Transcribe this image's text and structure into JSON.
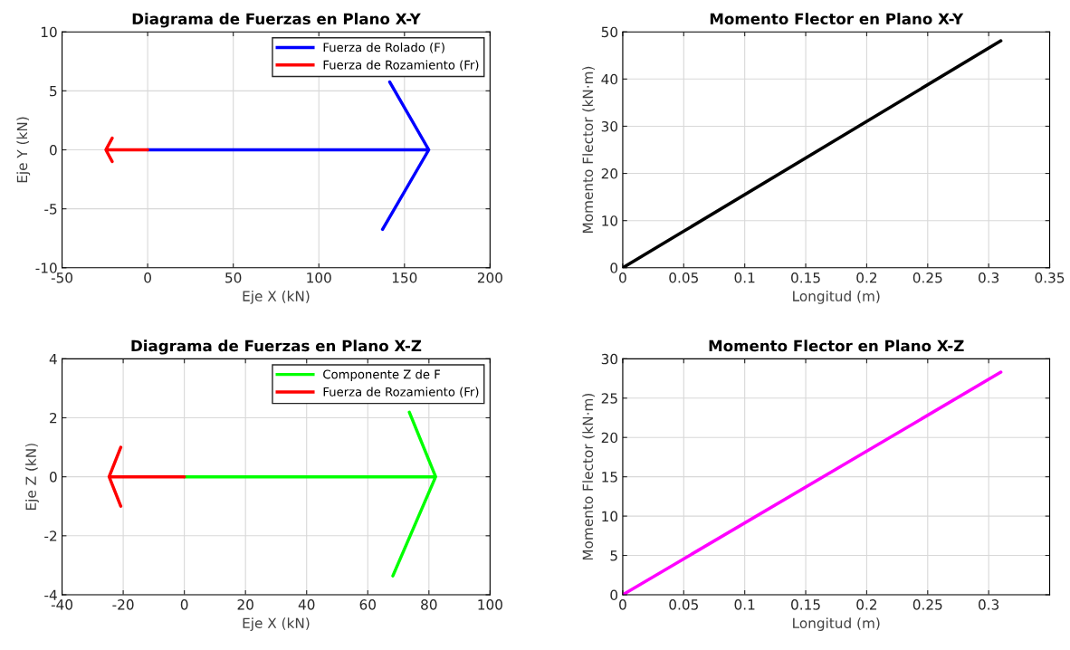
{
  "chart_data": [
    {
      "type": "line",
      "title": "Diagrama de Fuerzas en Plano X-Y",
      "xlabel": "Eje X (kN)",
      "ylabel": "Eje Y (kN)",
      "xlim": [
        -50,
        200
      ],
      "xticks": [
        -50,
        0,
        50,
        100,
        150,
        200
      ],
      "ylim": [
        -10,
        10
      ],
      "yticks": [
        -10,
        -5,
        0,
        5,
        10
      ],
      "grid": true,
      "legend": "top right",
      "marker": "none",
      "line_style": "solid",
      "series": [
        {
          "name": "Fuerza de Rolado (F)",
          "color": "#0000ff",
          "x": [
            0,
            164.2,
            141.4,
            164.2,
            137.2
          ],
          "values": [
            0,
            0,
            5.75,
            0,
            -6.74
          ]
        },
        {
          "name": "Fuerza de Rozamiento (Fr)",
          "color": "#ff0000",
          "x": [
            0,
            -24.4,
            -20.7,
            -24.4,
            -20.7
          ],
          "values": [
            0,
            0,
            1.0,
            0,
            -1.0
          ]
        }
      ]
    },
    {
      "type": "line",
      "title": "Momento Flector en Plano X-Y",
      "xlabel": "Longitud (m)",
      "ylabel": "Momento Flector (kN·m)",
      "xlim": [
        0,
        0.35
      ],
      "xticks": [
        0,
        0.05,
        0.1,
        0.15,
        0.2,
        0.25,
        0.3,
        0.35
      ],
      "ylim": [
        0,
        50
      ],
      "yticks": [
        0,
        10,
        20,
        30,
        40,
        50
      ],
      "grid": true,
      "marker": "none",
      "line_style": "solid",
      "series": [
        {
          "color": "#000000",
          "x": [
            0,
            0.31
          ],
          "values": [
            0,
            48.1
          ]
        }
      ]
    },
    {
      "type": "line",
      "title": "Diagrama de Fuerzas en Plano X-Z",
      "xlabel": "Eje X (kN)",
      "ylabel": "Eje Z (kN)",
      "xlim": [
        -40,
        100
      ],
      "xticks": [
        -40,
        -20,
        0,
        20,
        40,
        60,
        80,
        100
      ],
      "ylim": [
        -4,
        4
      ],
      "yticks": [
        -4,
        -2,
        0,
        2,
        4
      ],
      "grid": true,
      "legend": "top right",
      "marker": "none",
      "line_style": "solid",
      "series": [
        {
          "name": "Componente Z de F",
          "color": "#00ff00",
          "x": [
            0,
            82.2,
            73.6,
            82.2,
            68.2
          ],
          "values": [
            0,
            0,
            2.19,
            0,
            -3.36
          ]
        },
        {
          "name": "Fuerza de Rozamiento (Fr)",
          "color": "#ff0000",
          "x": [
            0,
            -24.6,
            -20.8,
            -24.6,
            -20.8
          ],
          "values": [
            0,
            0,
            1.0,
            0,
            -1.0
          ]
        }
      ]
    },
    {
      "type": "line",
      "title": "Momento Flector en Plano X-Z",
      "xlabel": "Longitud (m)",
      "ylabel": "Momento Flector (kN·m)",
      "xlim": [
        0,
        0.35
      ],
      "xticks": [
        0,
        0.05,
        0.1,
        0.15,
        0.2,
        0.25,
        0.3
      ],
      "ylim": [
        0,
        30
      ],
      "yticks": [
        0,
        5,
        10,
        15,
        20,
        25,
        30
      ],
      "grid": true,
      "marker": "none",
      "line_style": "solid",
      "series": [
        {
          "color": "#ff00ff",
          "x": [
            0,
            0.31
          ],
          "values": [
            0,
            28.3
          ]
        }
      ]
    }
  ]
}
